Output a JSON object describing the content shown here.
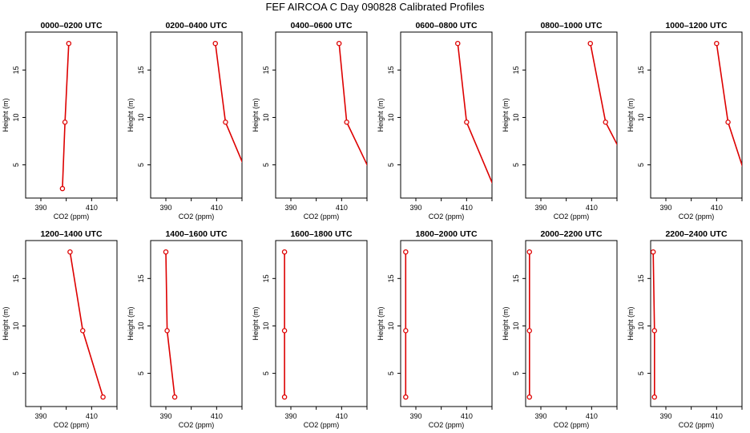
{
  "figure": {
    "title": "FEF AIRCOA C  Day 090828  Calibrated Profiles"
  },
  "colors": {
    "profile_line": "#dd0000",
    "axis": "#000000",
    "background": "#ffffff"
  },
  "chart_data": [
    {
      "type": "line",
      "title": "0000–0200 UTC",
      "xlabel": "CO2 (ppm)",
      "ylabel": "Height (m)",
      "xlim": [
        384,
        420
      ],
      "ylim": [
        1.5,
        19
      ],
      "xticks": [
        390,
        410
      ],
      "yticks": [
        5,
        10,
        15
      ],
      "grid": false,
      "series": [
        {
          "x": [
            398.5,
            399.5,
            401
          ],
          "y": [
            2.5,
            9.5,
            17.8
          ]
        }
      ]
    },
    {
      "type": "line",
      "title": "0200–0400 UTC",
      "xlabel": "CO2 (ppm)",
      "ylabel": "Height (m)",
      "xlim": [
        384,
        420
      ],
      "ylim": [
        1.5,
        19
      ],
      "xticks": [
        390,
        410
      ],
      "yticks": [
        5,
        10,
        15
      ],
      "grid": false,
      "series": [
        {
          "x": [
            424.5,
            413.5,
            409.5
          ],
          "y": [
            2.5,
            9.5,
            17.8
          ]
        }
      ]
    },
    {
      "type": "line",
      "title": "0400–0600 UTC",
      "xlabel": "CO2 (ppm)",
      "ylabel": "Height (m)",
      "xlim": [
        384,
        420
      ],
      "ylim": [
        1.5,
        19
      ],
      "xticks": [
        390,
        410
      ],
      "yticks": [
        5,
        10,
        15
      ],
      "grid": false,
      "series": [
        {
          "x": [
            424.5,
            412,
            409
          ],
          "y": [
            2.5,
            9.5,
            17.8
          ]
        }
      ]
    },
    {
      "type": "line",
      "title": "0600–0800 UTC",
      "xlabel": "CO2 (ppm)",
      "ylabel": "Height (m)",
      "xlim": [
        384,
        420
      ],
      "ylim": [
        1.5,
        19
      ],
      "xticks": [
        390,
        410
      ],
      "yticks": [
        5,
        10,
        15
      ],
      "grid": false,
      "series": [
        {
          "x": [
            421,
            410,
            406.5
          ],
          "y": [
            2.5,
            9.5,
            17.8
          ]
        }
      ]
    },
    {
      "type": "line",
      "title": "0800–1000 UTC",
      "xlabel": "CO2 (ppm)",
      "ylabel": "Height (m)",
      "xlim": [
        384,
        420
      ],
      "ylim": [
        1.5,
        19
      ],
      "xticks": [
        390,
        410
      ],
      "yticks": [
        5,
        10,
        15
      ],
      "grid": false,
      "series": [
        {
          "x": [
            429,
            415.5,
            409.5
          ],
          "y": [
            2.5,
            9.5,
            17.8
          ]
        }
      ]
    },
    {
      "type": "line",
      "title": "1000–1200 UTC",
      "xlabel": "CO2 (ppm)",
      "ylabel": "Height (m)",
      "xlim": [
        384,
        420
      ],
      "ylim": [
        1.5,
        19
      ],
      "xticks": [
        390,
        410
      ],
      "yticks": [
        5,
        10,
        15
      ],
      "grid": false,
      "series": [
        {
          "x": [
            423,
            414.5,
            410
          ],
          "y": [
            2.5,
            9.5,
            17.8
          ]
        }
      ]
    },
    {
      "type": "line",
      "title": "1200–1400 UTC",
      "xlabel": "CO2 (ppm)",
      "ylabel": "Height (m)",
      "xlim": [
        384,
        420
      ],
      "ylim": [
        1.5,
        19
      ],
      "xticks": [
        390,
        410
      ],
      "yticks": [
        5,
        10,
        15
      ],
      "grid": false,
      "series": [
        {
          "x": [
            414.5,
            406.5,
            401.5
          ],
          "y": [
            2.5,
            9.5,
            17.8
          ]
        }
      ]
    },
    {
      "type": "line",
      "title": "1400–1600 UTC",
      "xlabel": "CO2 (ppm)",
      "ylabel": "Height (m)",
      "xlim": [
        384,
        420
      ],
      "ylim": [
        1.5,
        19
      ],
      "xticks": [
        390,
        410
      ],
      "yticks": [
        5,
        10,
        15
      ],
      "grid": false,
      "series": [
        {
          "x": [
            393.5,
            390.5,
            390
          ],
          "y": [
            2.5,
            9.5,
            17.8
          ]
        }
      ]
    },
    {
      "type": "line",
      "title": "1600–1800 UTC",
      "xlabel": "CO2 (ppm)",
      "ylabel": "Height (m)",
      "xlim": [
        384,
        420
      ],
      "ylim": [
        1.5,
        19
      ],
      "xticks": [
        390,
        410
      ],
      "yticks": [
        5,
        10,
        15
      ],
      "grid": false,
      "series": [
        {
          "x": [
            387.5,
            387.5,
            387.5
          ],
          "y": [
            2.5,
            9.5,
            17.8
          ]
        }
      ]
    },
    {
      "type": "line",
      "title": "1800–2000 UTC",
      "xlabel": "CO2 (ppm)",
      "ylabel": "Height (m)",
      "xlim": [
        384,
        420
      ],
      "ylim": [
        1.5,
        19
      ],
      "xticks": [
        390,
        410
      ],
      "yticks": [
        5,
        10,
        15
      ],
      "grid": false,
      "series": [
        {
          "x": [
            386,
            386,
            386
          ],
          "y": [
            2.5,
            9.5,
            17.8
          ]
        }
      ]
    },
    {
      "type": "line",
      "title": "2000–2200 UTC",
      "xlabel": "CO2 (ppm)",
      "ylabel": "Height (m)",
      "xlim": [
        384,
        420
      ],
      "ylim": [
        1.5,
        19
      ],
      "xticks": [
        390,
        410
      ],
      "yticks": [
        5,
        10,
        15
      ],
      "grid": false,
      "series": [
        {
          "x": [
            385.5,
            385.5,
            385.5
          ],
          "y": [
            2.5,
            9.5,
            17.8
          ]
        }
      ]
    },
    {
      "type": "line",
      "title": "2200–2400 UTC",
      "xlabel": "CO2 (ppm)",
      "ylabel": "Height (m)",
      "xlim": [
        384,
        420
      ],
      "ylim": [
        1.5,
        19
      ],
      "xticks": [
        390,
        410
      ],
      "yticks": [
        5,
        10,
        15
      ],
      "grid": false,
      "series": [
        {
          "x": [
            385.5,
            385.5,
            385
          ],
          "y": [
            2.5,
            9.5,
            17.8
          ]
        }
      ]
    }
  ]
}
